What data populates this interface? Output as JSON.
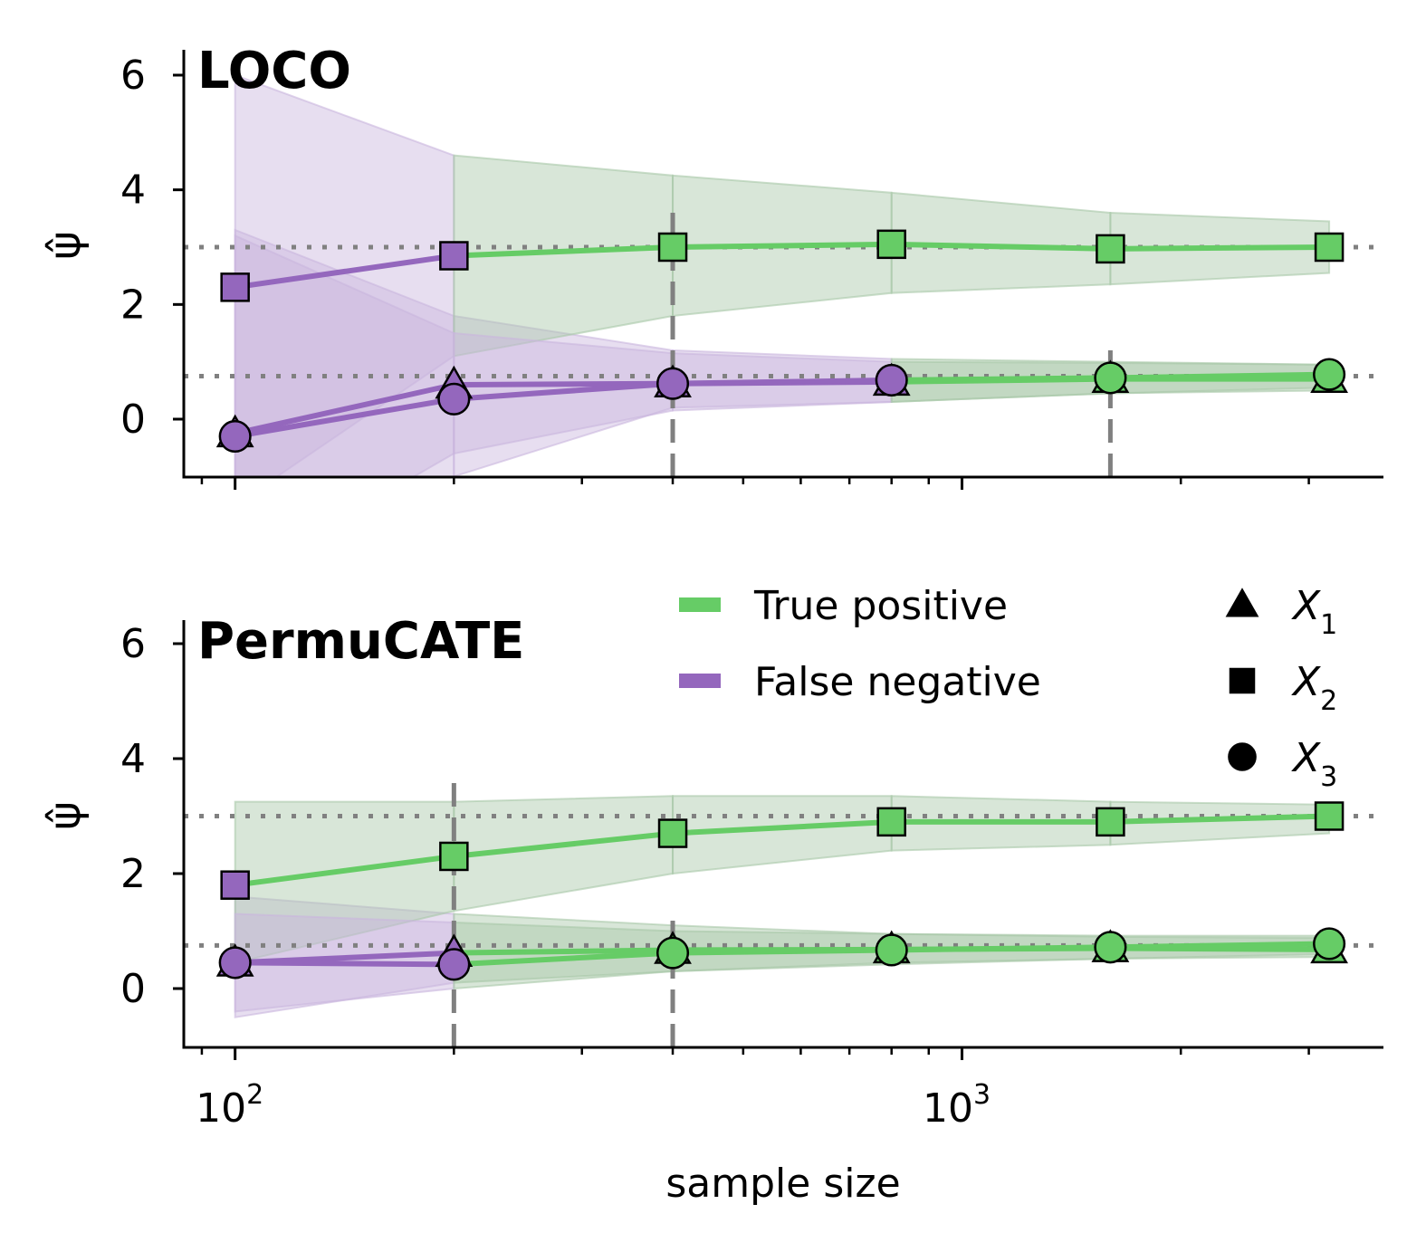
{
  "chart_data": {
    "type": "line",
    "xscale": "log",
    "x": [
      100,
      200,
      400,
      800,
      1600,
      3200
    ],
    "xlim": [
      85,
      3800
    ],
    "x_tick_labels": [
      {
        "value": 100,
        "base": "10",
        "exp": "2"
      },
      {
        "value": 1000,
        "base": "10",
        "exp": "3"
      }
    ],
    "xlabel": "sample size",
    "ylabel": "ψ̂",
    "ylim": [
      -1,
      6.5
    ],
    "y_ticks": [
      0,
      2,
      4,
      6
    ],
    "colors": {
      "true_positive": "#66cc66",
      "false_negative": "#9467bd",
      "true_positive_band": "#a9c8a9",
      "false_negative_band": "#c9b6de",
      "reference": "#808080",
      "marker_edge": "#000000"
    },
    "legend": {
      "status": [
        {
          "label": "True positive",
          "color": "#66cc66"
        },
        {
          "label": "False negative",
          "color": "#9467bd"
        }
      ],
      "variables": [
        {
          "marker": "triangle",
          "label": "X",
          "sub": "1"
        },
        {
          "marker": "square",
          "label": "X",
          "sub": "2"
        },
        {
          "marker": "circle",
          "label": "X",
          "sub": "3"
        }
      ]
    },
    "panels": [
      {
        "title": "LOCO",
        "reference_lines": [
          3.0,
          0.75
        ],
        "detection_lines": [
          {
            "x": 400,
            "y_top": 3.75
          },
          {
            "x": 1600,
            "y_top": 1.2
          }
        ],
        "series": [
          {
            "name": "X1",
            "marker": "triangle",
            "values": [
              -0.25,
              0.6,
              0.62,
              0.65,
              0.7,
              0.7
            ],
            "lower": [
              -2.7,
              -1.0,
              0.2,
              0.3,
              0.45,
              0.5
            ],
            "upper": [
              3.3,
              1.8,
              1.2,
              1.05,
              1.0,
              0.95
            ],
            "significant_from": 4
          },
          {
            "name": "X2",
            "marker": "square",
            "values": [
              2.3,
              2.85,
              3.0,
              3.05,
              2.97,
              3.0
            ],
            "lower": [
              -1.5,
              1.1,
              1.8,
              2.2,
              2.35,
              2.55
            ],
            "upper": [
              6.0,
              4.6,
              4.25,
              3.95,
              3.6,
              3.45
            ],
            "significant_from": 2
          },
          {
            "name": "X3",
            "marker": "circle",
            "values": [
              -0.3,
              0.35,
              0.62,
              0.68,
              0.72,
              0.78
            ],
            "lower": [
              -2.8,
              -0.6,
              0.15,
              0.3,
              0.45,
              0.55
            ],
            "upper": [
              3.2,
              1.5,
              1.15,
              1.0,
              0.98,
              0.95
            ],
            "significant_from": 4
          }
        ]
      },
      {
        "title": "PermuCATE",
        "reference_lines": [
          3.0,
          0.75
        ],
        "detection_lines": [
          {
            "x": 200,
            "y_top": 3.7
          },
          {
            "x": 400,
            "y_top": 1.2
          }
        ],
        "series": [
          {
            "name": "X1",
            "marker": "triangle",
            "values": [
              0.45,
              0.62,
              0.67,
              0.68,
              0.7,
              0.68
            ],
            "lower": [
              -0.5,
              0.1,
              0.3,
              0.45,
              0.52,
              0.55
            ],
            "upper": [
              1.6,
              1.3,
              1.1,
              0.95,
              0.9,
              0.88
            ],
            "significant_from": 2
          },
          {
            "name": "X2",
            "marker": "square",
            "values": [
              1.8,
              2.3,
              2.7,
              2.9,
              2.9,
              3.0
            ],
            "lower": [
              0.45,
              1.35,
              2.0,
              2.4,
              2.5,
              2.7
            ],
            "upper": [
              3.25,
              3.25,
              3.35,
              3.35,
              3.25,
              3.2
            ],
            "significant_from": 1
          },
          {
            "name": "X3",
            "marker": "circle",
            "values": [
              0.45,
              0.42,
              0.62,
              0.67,
              0.72,
              0.78
            ],
            "lower": [
              -0.4,
              0.0,
              0.3,
              0.42,
              0.52,
              0.6
            ],
            "upper": [
              1.3,
              1.15,
              1.0,
              0.95,
              0.92,
              0.92
            ],
            "significant_from": 2
          }
        ]
      }
    ]
  }
}
